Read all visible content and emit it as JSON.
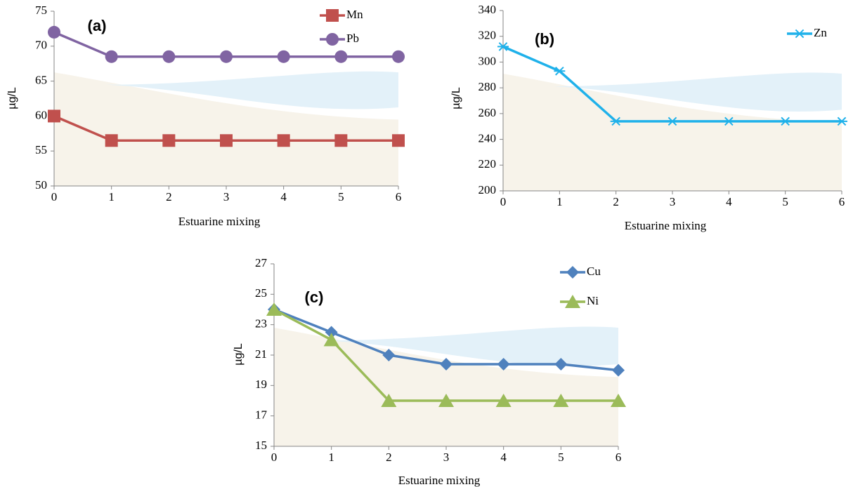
{
  "chart_data": [
    {
      "type": "line",
      "annotation": "(a)",
      "xlabel": "Estuarine mixing",
      "ylabel": "µg/L",
      "x": [
        0,
        1,
        2,
        3,
        4,
        5,
        6
      ],
      "xlim": [
        0,
        6
      ],
      "xticks": [
        0,
        1,
        2,
        3,
        4,
        5,
        6
      ],
      "ylim": [
        50,
        75
      ],
      "yticks": [
        50,
        55,
        60,
        65,
        70,
        75
      ],
      "grid": false,
      "series": [
        {
          "name": "Mn",
          "color": "#c0504d",
          "marker": "square",
          "values": [
            60,
            56.5,
            56.5,
            56.5,
            56.5,
            56.5,
            56.5
          ]
        },
        {
          "name": "Pb",
          "color": "#8064a2",
          "marker": "circle",
          "values": [
            72,
            68.5,
            68.5,
            68.5,
            68.5,
            68.5,
            68.5
          ]
        }
      ]
    },
    {
      "type": "line",
      "annotation": "(b)",
      "xlabel": "Estuarine mixing",
      "ylabel": "µg/L",
      "x": [
        0,
        1,
        2,
        3,
        4,
        5,
        6
      ],
      "xlim": [
        0,
        6
      ],
      "xticks": [
        0,
        1,
        2,
        3,
        4,
        5,
        6
      ],
      "ylim": [
        200,
        340
      ],
      "yticks": [
        200,
        220,
        240,
        260,
        280,
        300,
        320,
        340
      ],
      "grid": false,
      "series": [
        {
          "name": "Zn",
          "color": "#1fb1ea",
          "marker": "asterisk",
          "values": [
            312,
            293,
            254,
            254,
            254,
            254,
            254
          ]
        }
      ]
    },
    {
      "type": "line",
      "annotation": "(c)",
      "xlabel": "Estuarine mixing",
      "ylabel": "µg/L",
      "x": [
        0,
        1,
        2,
        3,
        4,
        5,
        6
      ],
      "xlim": [
        0,
        6
      ],
      "xticks": [
        0,
        1,
        2,
        3,
        4,
        5,
        6
      ],
      "ylim": [
        15,
        27
      ],
      "yticks": [
        15,
        17,
        19,
        21,
        23,
        25,
        27
      ],
      "grid": false,
      "series": [
        {
          "name": "Cu",
          "color": "#4f81bd",
          "marker": "diamond",
          "values": [
            24,
            22.5,
            21,
            20.4,
            20.4,
            20.4,
            20
          ]
        },
        {
          "name": "Ni",
          "color": "#9bbb59",
          "marker": "triangle",
          "values": [
            24,
            22,
            18,
            18,
            18,
            18,
            18
          ]
        }
      ]
    }
  ]
}
